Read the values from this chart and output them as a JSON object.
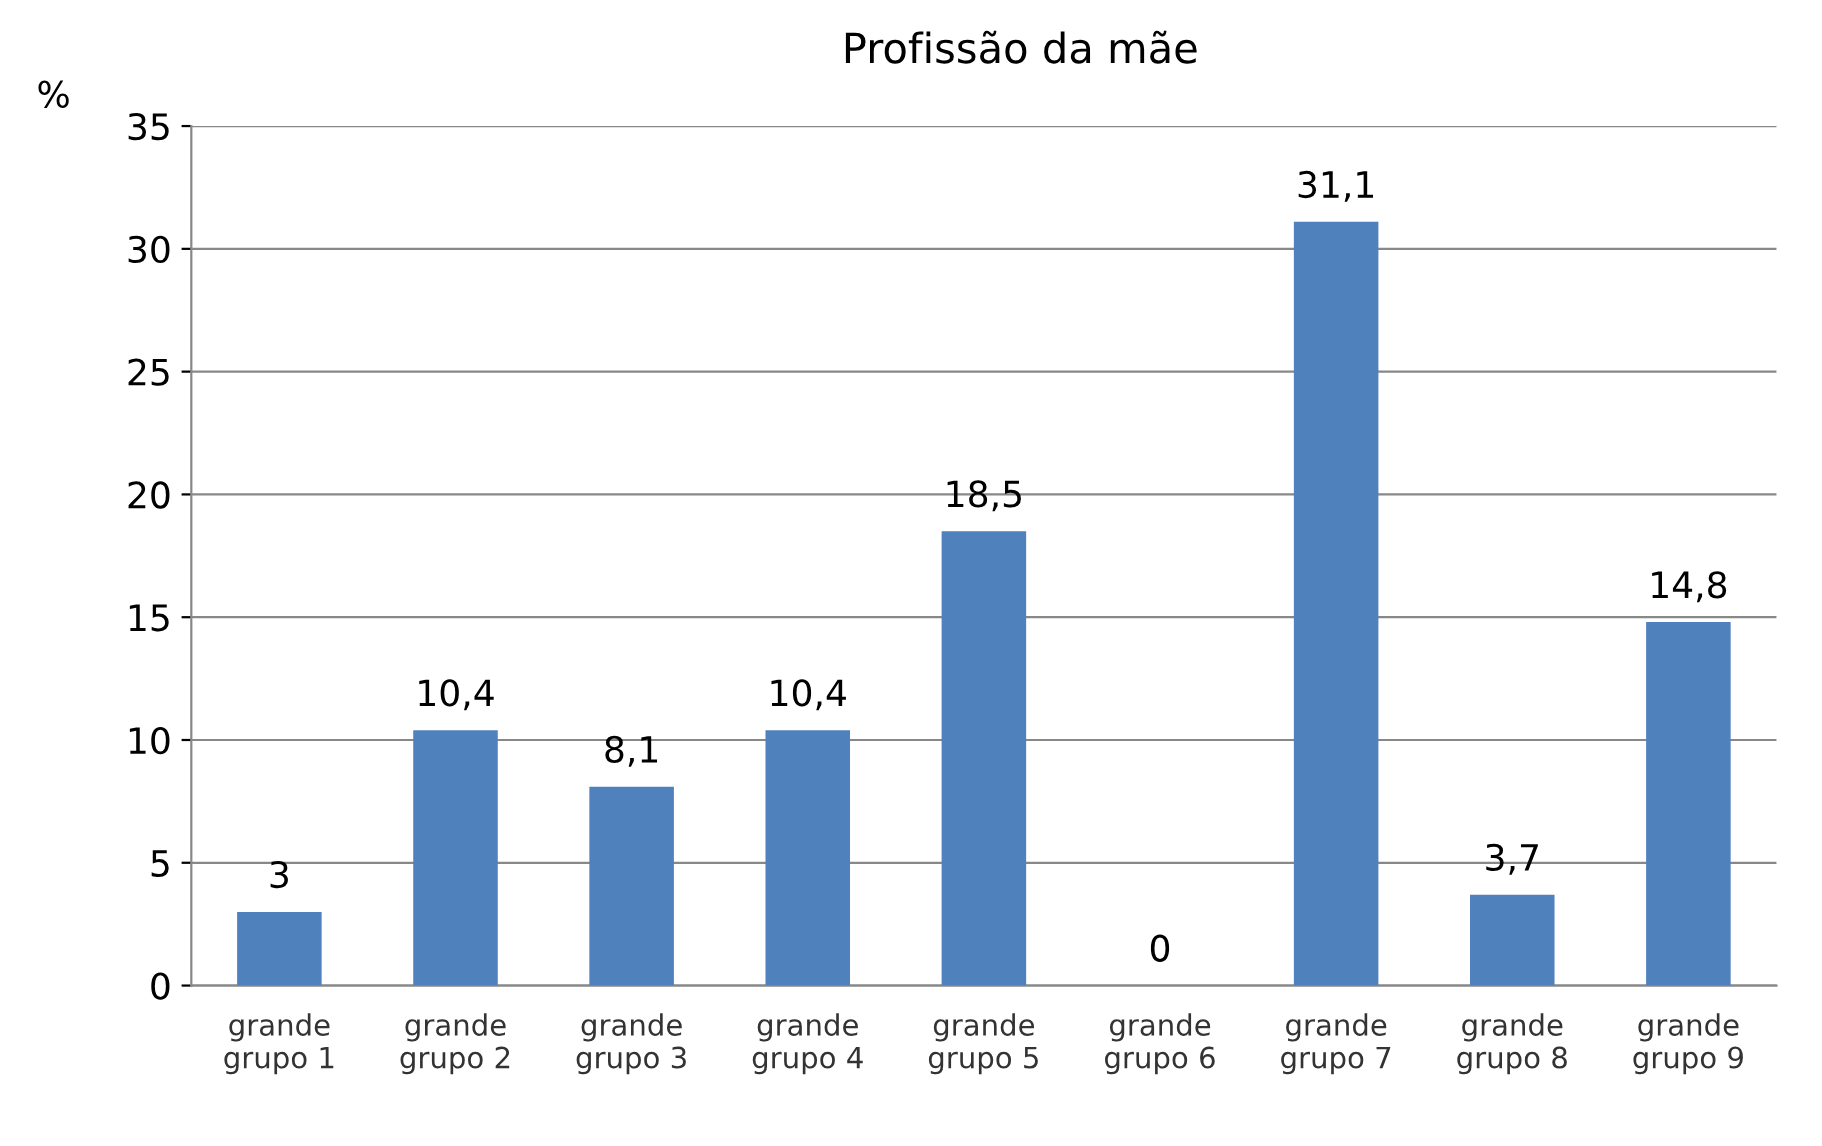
{
  "chart_data": {
    "type": "bar",
    "title": "Profissão da mãe",
    "ylabel": "%",
    "categories": [
      "grande\ngrupo 1",
      "grande\ngrupo 2",
      "grande\ngrupo 3",
      "grande\ngrupo 4",
      "grande\ngrupo 5",
      "grande\ngrupo 6",
      "grande\ngrupo 7",
      "grande\ngrupo 8",
      "grande\ngrupo 9"
    ],
    "values": [
      3,
      10.4,
      8.1,
      10.4,
      18.5,
      0,
      31.1,
      3.7,
      14.8
    ],
    "value_labels": [
      "3",
      "10,4",
      "8,1",
      "10,4",
      "18,5",
      "0",
      "31,1",
      "3,7",
      "14,8"
    ],
    "color": "#4f81bd",
    "ylim": [
      0,
      35
    ],
    "yticks": [
      0,
      5,
      10,
      15,
      20,
      25,
      30,
      35
    ],
    "grid": "y",
    "legend": false
  }
}
